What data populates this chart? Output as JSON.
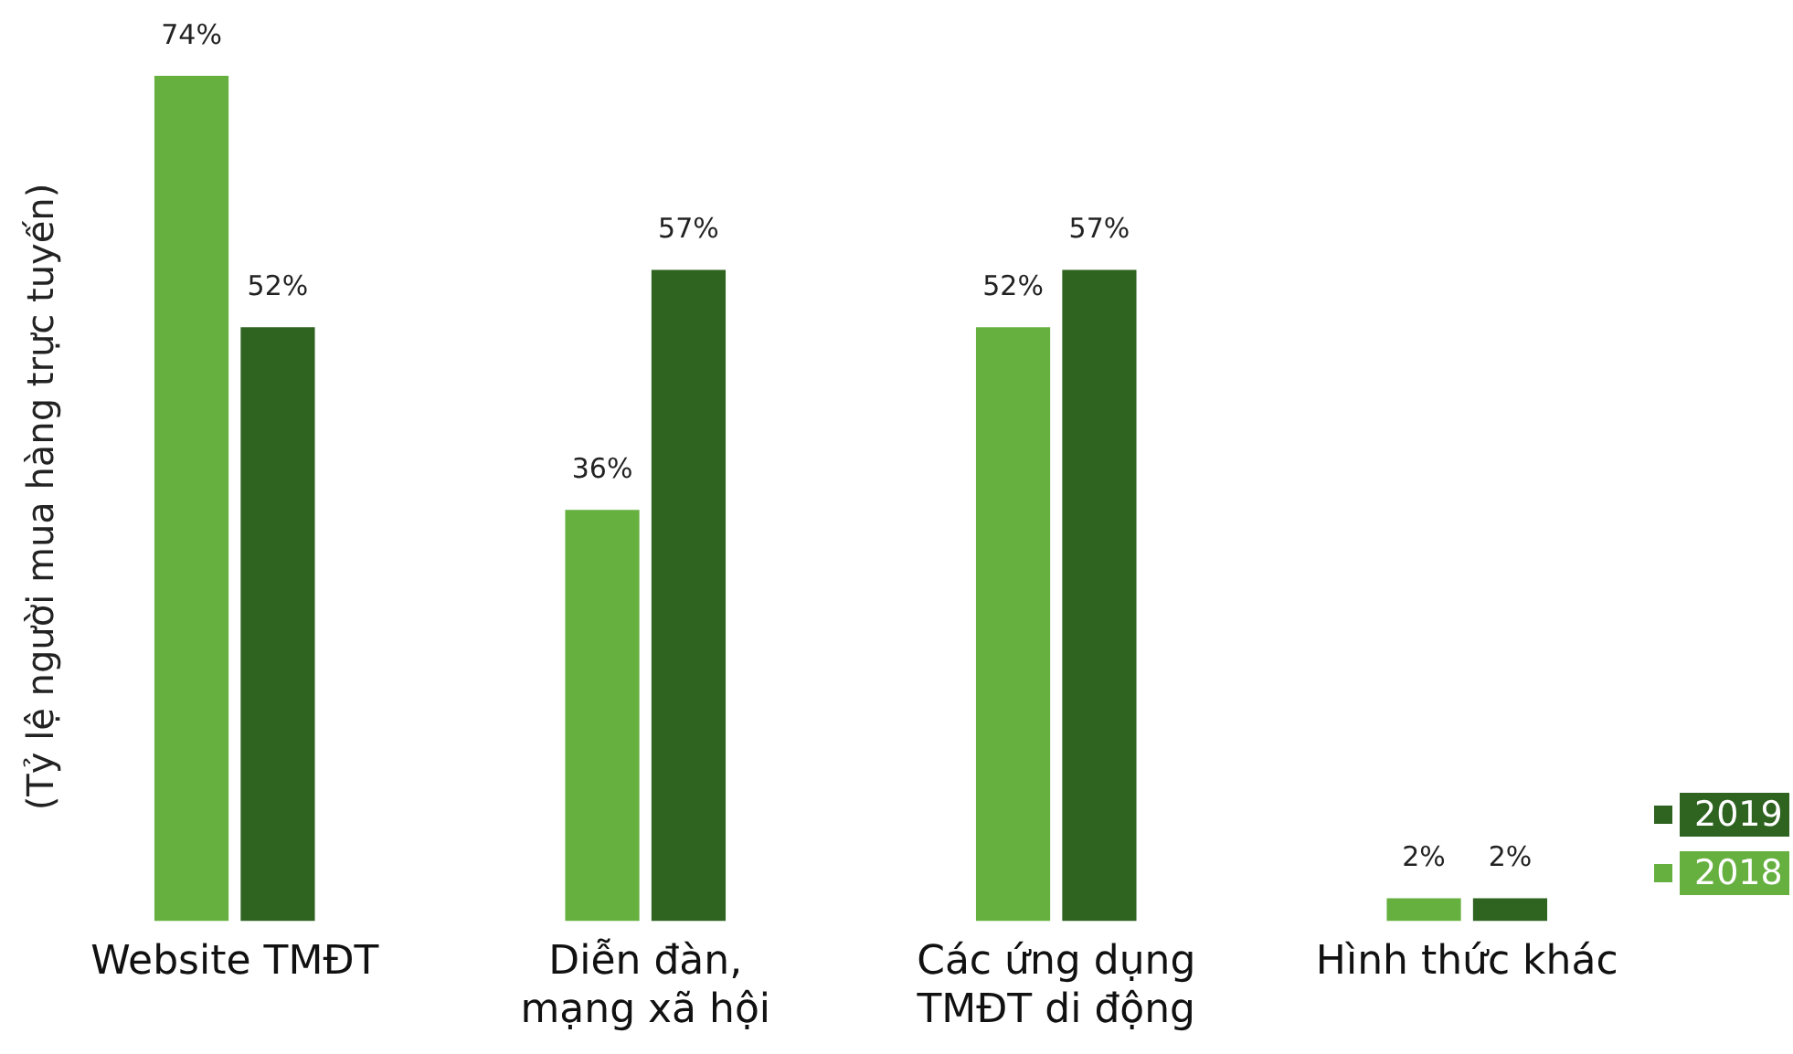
{
  "chart_data": {
    "type": "bar",
    "ylabel": "(Tỷ lệ người mua hàng trực tuyến)",
    "categories": [
      "Website TMĐT",
      "Diễn đàn, mạng xã hội",
      "Các ứng dụng TMĐT di động",
      "Hình thức khác"
    ],
    "series": [
      {
        "name": "2018",
        "color": "#66b040",
        "values": [
          74,
          36,
          52,
          2
        ],
        "value_labels": [
          "74%",
          "36%",
          "52%",
          "2%"
        ]
      },
      {
        "name": "2019",
        "color": "#2e6320",
        "values": [
          52,
          57,
          57,
          2
        ],
        "value_labels": [
          "52%",
          "57%",
          "57%",
          "2%"
        ]
      }
    ],
    "legend": "bottom right",
    "grid": false
  }
}
